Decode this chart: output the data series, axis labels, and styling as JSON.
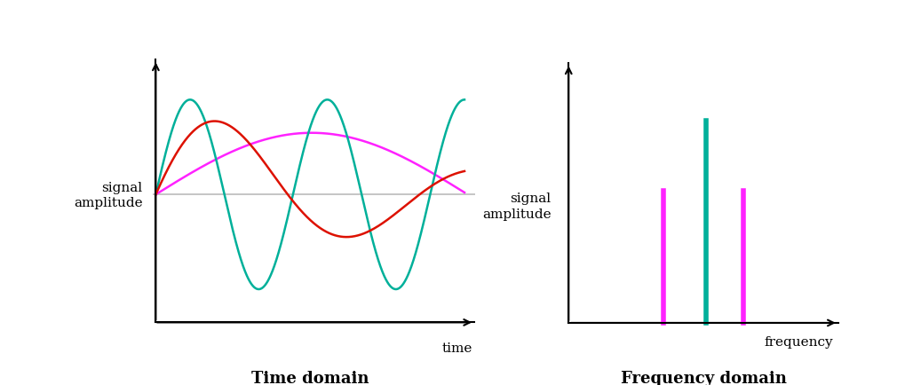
{
  "background_color": "#ffffff",
  "time_domain_label": "Time domain",
  "freq_domain_label": "Frequency domain",
  "time_xlabel": "time",
  "time_ylabel": "signal\namplitude",
  "freq_xlabel": "frequency",
  "freq_ylabel": "signal\namplitude",
  "teal_color": "#00B09A",
  "red_color": "#DD1100",
  "magenta_color": "#FF22FF",
  "gray_color": "#BBBBBB",
  "freq_bar1_color": "#FF22FF",
  "freq_bar2_color": "#00B09A",
  "freq_bar3_color": "#FF22FF",
  "label_fontsize": 11,
  "title_fontsize": 13
}
